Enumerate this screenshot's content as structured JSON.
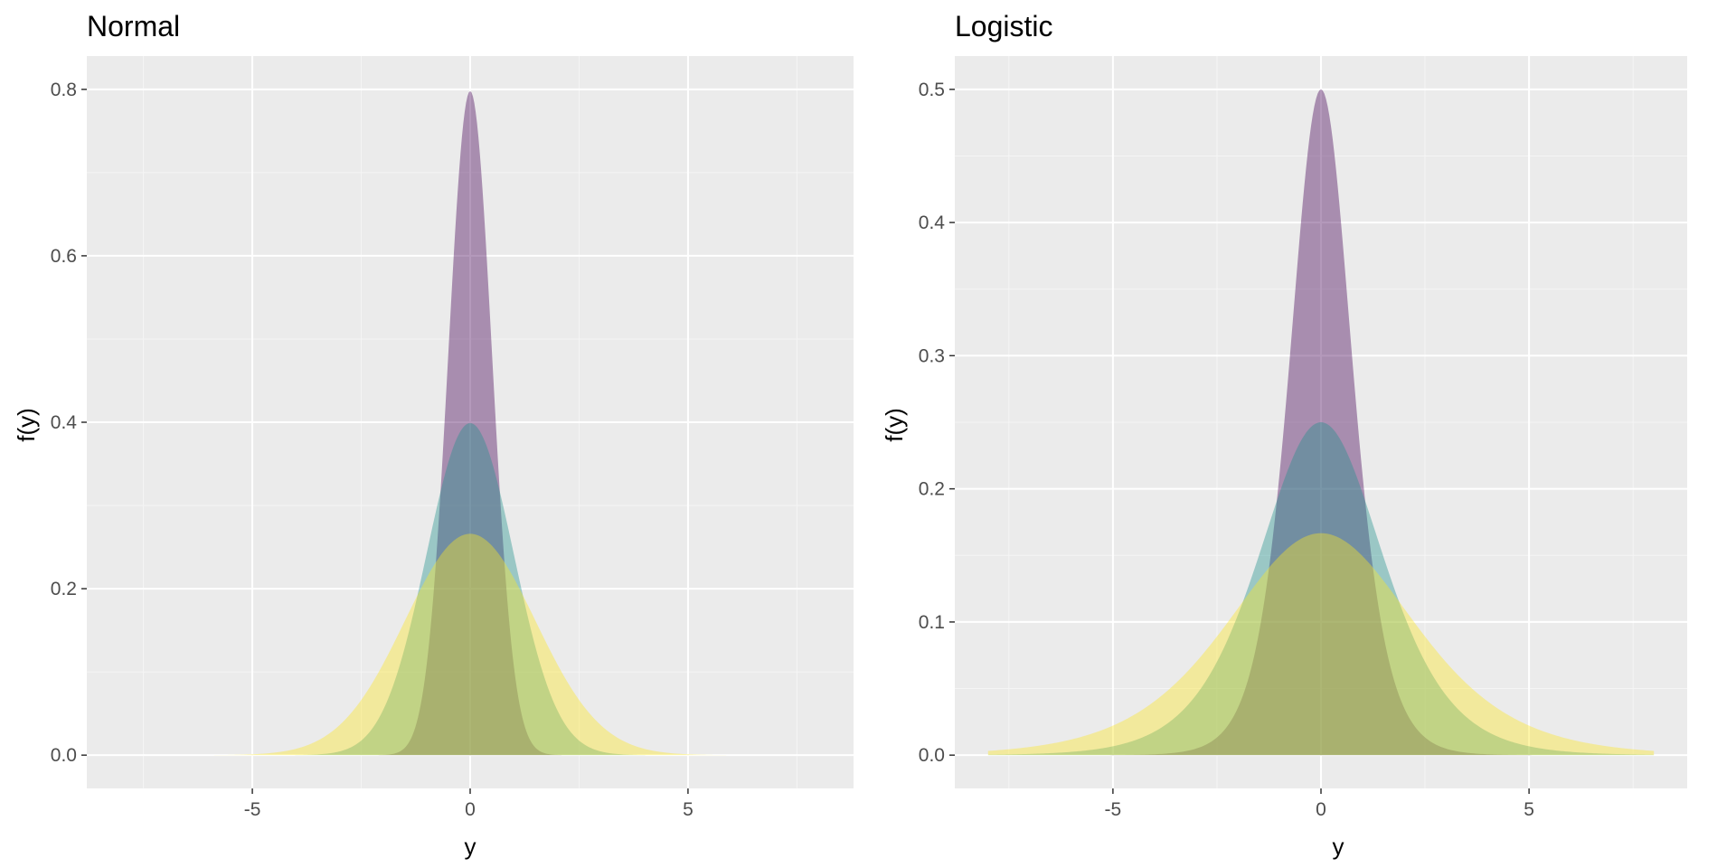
{
  "colors": {
    "panel_background": "#ebebeb",
    "grid_major": "#ffffff",
    "grid_minor": "#f5f5f5",
    "series_palette": [
      "#440154",
      "#21908c",
      "#fde725"
    ],
    "fill_opacity": 0.4
  },
  "chart_data": [
    {
      "type": "area",
      "title": "Normal",
      "xlabel": "y",
      "ylabel": "f(y)",
      "distribution": "normal",
      "xlim": [
        -8.8,
        8.8
      ],
      "ylim": [
        -0.04,
        0.84
      ],
      "x_ticks": [
        -5,
        0,
        5
      ],
      "x_tick_labels": [
        "-5",
        "0",
        "5"
      ],
      "y_ticks": [
        0.0,
        0.2,
        0.4,
        0.6,
        0.8
      ],
      "y_tick_labels": [
        "0.0",
        "0.2",
        "0.4",
        "0.6",
        "0.8"
      ],
      "grid": true,
      "x_range": [
        -6.3,
        6.3
      ],
      "series": [
        {
          "location": 0,
          "scale": 0.5,
          "peak": 0.798,
          "color": "#440154"
        },
        {
          "location": 0,
          "scale": 1.0,
          "peak": 0.399,
          "color": "#21908c"
        },
        {
          "location": 0,
          "scale": 1.5,
          "peak": 0.266,
          "color": "#fde725"
        }
      ]
    },
    {
      "type": "area",
      "title": "Logistic",
      "xlabel": "y",
      "ylabel": "f(y)",
      "distribution": "logistic",
      "xlim": [
        -8.8,
        8.8
      ],
      "ylim": [
        -0.025,
        0.525
      ],
      "x_ticks": [
        -5,
        0,
        5
      ],
      "x_tick_labels": [
        "-5",
        "0",
        "5"
      ],
      "y_ticks": [
        0.0,
        0.1,
        0.2,
        0.3,
        0.4,
        0.5
      ],
      "y_tick_labels": [
        "0.0",
        "0.1",
        "0.2",
        "0.3",
        "0.4",
        "0.5"
      ],
      "grid": true,
      "x_range": [
        -8,
        8
      ],
      "series": [
        {
          "location": 0,
          "scale": 0.5,
          "peak": 0.5,
          "color": "#440154"
        },
        {
          "location": 0,
          "scale": 1.0,
          "peak": 0.25,
          "color": "#21908c"
        },
        {
          "location": 0,
          "scale": 1.5,
          "peak": 0.167,
          "color": "#fde725"
        }
      ]
    }
  ]
}
